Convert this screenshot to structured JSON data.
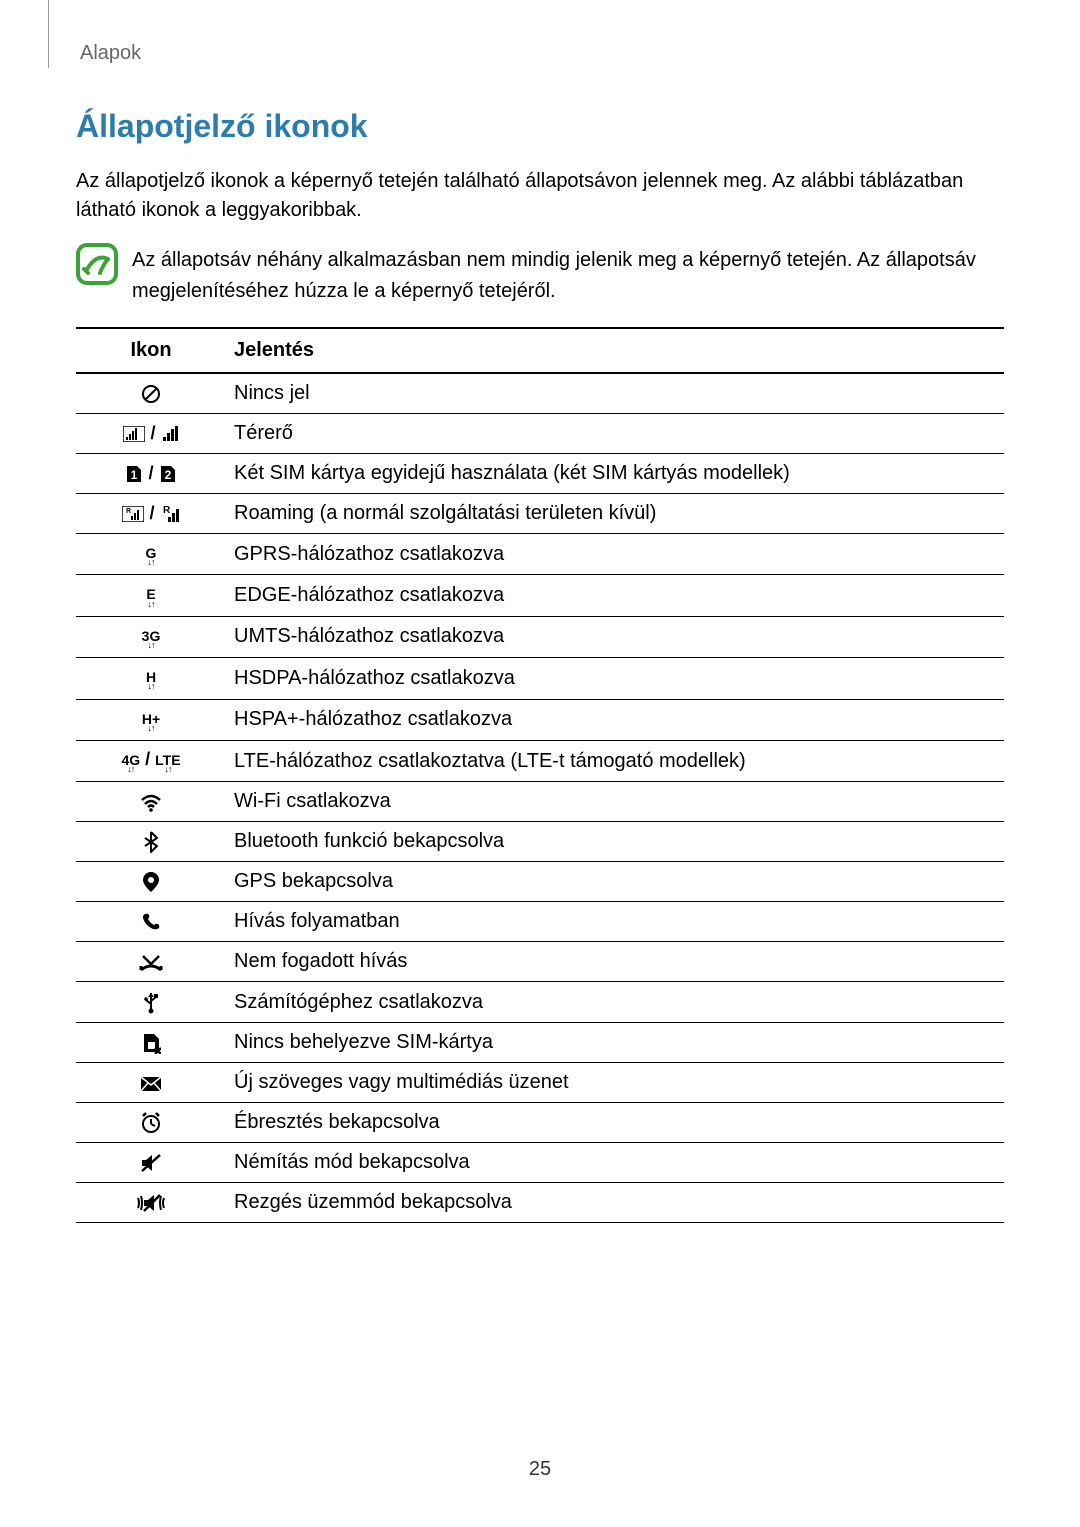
{
  "header": {
    "label": "Alapok"
  },
  "section": {
    "title": "Állapotjelző ikonok",
    "title_color": "#2b7db0",
    "intro": "Az állapotjelző ikonok a képernyő tetején található állapotsávon jelennek meg. Az alábbi táblázatban látható ikonok a leggyakoribbak.",
    "note": "Az állapotsáv néhány alkalmazásban nem mindig jelenik meg a képernyő tetején. Az állapotsáv megjelenítéséhez húzza le a képernyő tetejéről."
  },
  "table": {
    "headers": {
      "icon": "Ikon",
      "meaning": "Jelentés"
    },
    "rows": [
      {
        "icon_name": "no-signal",
        "meaning": "Nincs jel"
      },
      {
        "icon_name": "signal",
        "meaning": "Térerő"
      },
      {
        "icon_name": "dual-sim",
        "meaning": "Két SIM kártya egyidejű használata (két SIM kártyás modellek)"
      },
      {
        "icon_name": "roaming",
        "meaning": "Roaming (a normál szolgáltatási területen kívül)"
      },
      {
        "icon_name": "gprs",
        "label_top": "G",
        "meaning": "GPRS-hálózathoz csatlakozva"
      },
      {
        "icon_name": "edge",
        "label_top": "E",
        "meaning": "EDGE-hálózathoz csatlakozva"
      },
      {
        "icon_name": "umts",
        "label_top": "3G",
        "meaning": "UMTS-hálózathoz csatlakozva"
      },
      {
        "icon_name": "hsdpa",
        "label_top": "H",
        "meaning": "HSDPA-hálózathoz csatlakozva"
      },
      {
        "icon_name": "hspa-plus",
        "label_top": "H+",
        "meaning": "HSPA+-hálózathoz csatlakozva"
      },
      {
        "icon_name": "lte",
        "label_top": "4G",
        "label_top2": "LTE",
        "meaning": "LTE-hálózathoz csatlakoztatva (LTE-t támogató modellek)"
      },
      {
        "icon_name": "wifi",
        "meaning": "Wi-Fi csatlakozva"
      },
      {
        "icon_name": "bluetooth",
        "meaning": "Bluetooth funkció bekapcsolva"
      },
      {
        "icon_name": "gps",
        "meaning": "GPS bekapcsolva"
      },
      {
        "icon_name": "call",
        "meaning": "Hívás folyamatban"
      },
      {
        "icon_name": "missed-call",
        "meaning": "Nem fogadott hívás"
      },
      {
        "icon_name": "usb",
        "meaning": "Számítógéphez csatlakozva"
      },
      {
        "icon_name": "no-sim",
        "meaning": "Nincs behelyezve SIM-kártya"
      },
      {
        "icon_name": "message",
        "meaning": "Új szöveges vagy multimédiás üzenet"
      },
      {
        "icon_name": "alarm",
        "meaning": "Ébresztés bekapcsolva"
      },
      {
        "icon_name": "mute",
        "meaning": "Némítás mód bekapcsolva"
      },
      {
        "icon_name": "vibrate",
        "meaning": "Rezgés üzemmód bekapcsolva"
      }
    ]
  },
  "page_number": "25"
}
